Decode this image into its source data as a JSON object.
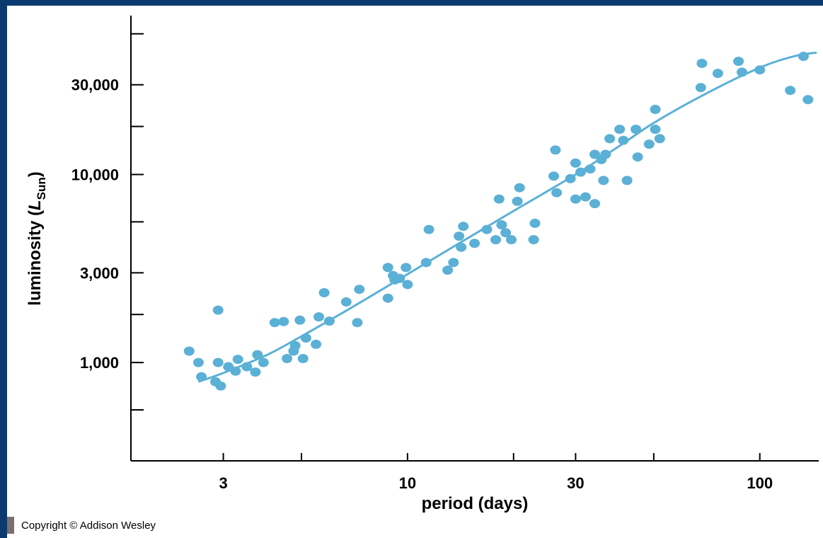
{
  "copyright": "Copyright © Addison Wesley",
  "colors": {
    "frame": "#0b3a6e",
    "points": "#5bb0d6",
    "curve": "#5bb0d6",
    "axis": "#000000"
  },
  "chart_data": {
    "type": "scatter",
    "xlabel": "period (days)",
    "ylabel_main": "luminosity (",
    "ylabel_L": "L",
    "ylabel_sub": "Sun",
    "ylabel_close": ")",
    "xscale": "log",
    "yscale": "log",
    "xlim": [
      1.64,
      147
    ],
    "ylim": [
      300,
      70000
    ],
    "xticks_major": [
      {
        "value": 3,
        "label": "3"
      },
      {
        "value": 10,
        "label": "10"
      },
      {
        "value": 30,
        "label": "30"
      },
      {
        "value": 100,
        "label": "100"
      }
    ],
    "xticks_minor": [
      5,
      20,
      50
    ],
    "yticks_major": [
      {
        "value": 1000,
        "label": "1,000"
      },
      {
        "value": 3000,
        "label": "3,000"
      },
      {
        "value": 10000,
        "label": "10,000"
      },
      {
        "value": 30000,
        "label": "30,000"
      }
    ],
    "yticks_minor": [
      560,
      1800,
      5600,
      18000,
      56000
    ],
    "points": [
      [
        2.4,
        1150
      ],
      [
        2.55,
        1000
      ],
      [
        2.6,
        840
      ],
      [
        2.85,
        790
      ],
      [
        2.95,
        750
      ],
      [
        2.9,
        1000
      ],
      [
        2.9,
        1900
      ],
      [
        3.1,
        950
      ],
      [
        3.25,
        900
      ],
      [
        3.3,
        1040
      ],
      [
        3.5,
        950
      ],
      [
        3.7,
        890
      ],
      [
        3.75,
        1100
      ],
      [
        3.9,
        1000
      ],
      [
        4.2,
        1630
      ],
      [
        4.45,
        1650
      ],
      [
        4.55,
        1050
      ],
      [
        4.75,
        1150
      ],
      [
        4.8,
        1230
      ],
      [
        4.95,
        1680
      ],
      [
        5.05,
        1050
      ],
      [
        5.15,
        1350
      ],
      [
        5.5,
        1250
      ],
      [
        5.6,
        1750
      ],
      [
        5.8,
        2350
      ],
      [
        6.0,
        1660
      ],
      [
        6.7,
        2100
      ],
      [
        7.2,
        1630
      ],
      [
        7.3,
        2450
      ],
      [
        8.8,
        3200
      ],
      [
        8.8,
        2200
      ],
      [
        9.1,
        2900
      ],
      [
        9.2,
        2750
      ],
      [
        9.5,
        2800
      ],
      [
        9.9,
        3200
      ],
      [
        10.0,
        2600
      ],
      [
        11.3,
        3400
      ],
      [
        11.5,
        5100
      ],
      [
        13.0,
        3100
      ],
      [
        13.5,
        3400
      ],
      [
        14.0,
        4700
      ],
      [
        14.2,
        4100
      ],
      [
        14.4,
        5300
      ],
      [
        15.5,
        4300
      ],
      [
        16.8,
        5100
      ],
      [
        17.8,
        4500
      ],
      [
        18.2,
        7400
      ],
      [
        18.5,
        5400
      ],
      [
        19.0,
        4900
      ],
      [
        19.7,
        4500
      ],
      [
        20.5,
        7200
      ],
      [
        20.8,
        8500
      ],
      [
        22.8,
        4500
      ],
      [
        23.0,
        5500
      ],
      [
        26.0,
        9800
      ],
      [
        26.3,
        13500
      ],
      [
        26.5,
        8000
      ],
      [
        29.0,
        9500
      ],
      [
        30.0,
        7400
      ],
      [
        30.0,
        11500
      ],
      [
        31.0,
        10300
      ],
      [
        32.0,
        7600
      ],
      [
        33.0,
        10700
      ],
      [
        34.0,
        12800
      ],
      [
        34.0,
        7000
      ],
      [
        35.5,
        12000
      ],
      [
        36.0,
        9300
      ],
      [
        36.5,
        12800
      ],
      [
        37.5,
        15500
      ],
      [
        40.0,
        17400
      ],
      [
        41.0,
        15200
      ],
      [
        42.0,
        9300
      ],
      [
        44.5,
        17400
      ],
      [
        45.0,
        12400
      ],
      [
        48.5,
        14500
      ],
      [
        50.5,
        22200
      ],
      [
        50.5,
        17400
      ],
      [
        52.0,
        15500
      ],
      [
        68.0,
        29000
      ],
      [
        68.5,
        39000
      ],
      [
        76.0,
        34500
      ],
      [
        87.0,
        40000
      ],
      [
        89.0,
        35000
      ],
      [
        100.0,
        36000
      ],
      [
        122.0,
        28000
      ],
      [
        133.0,
        42500
      ],
      [
        137.0,
        25000
      ]
    ],
    "fit_curve": [
      [
        2.55,
        790
      ],
      [
        3,
        880
      ],
      [
        4,
        1100
      ],
      [
        5,
        1380
      ],
      [
        7,
        1980
      ],
      [
        10,
        2950
      ],
      [
        14,
        4300
      ],
      [
        20,
        6400
      ],
      [
        30,
        10000
      ],
      [
        40,
        14200
      ],
      [
        50,
        18800
      ],
      [
        70,
        26800
      ],
      [
        100,
        37000
      ],
      [
        125,
        42500
      ],
      [
        145,
        44500
      ]
    ]
  }
}
